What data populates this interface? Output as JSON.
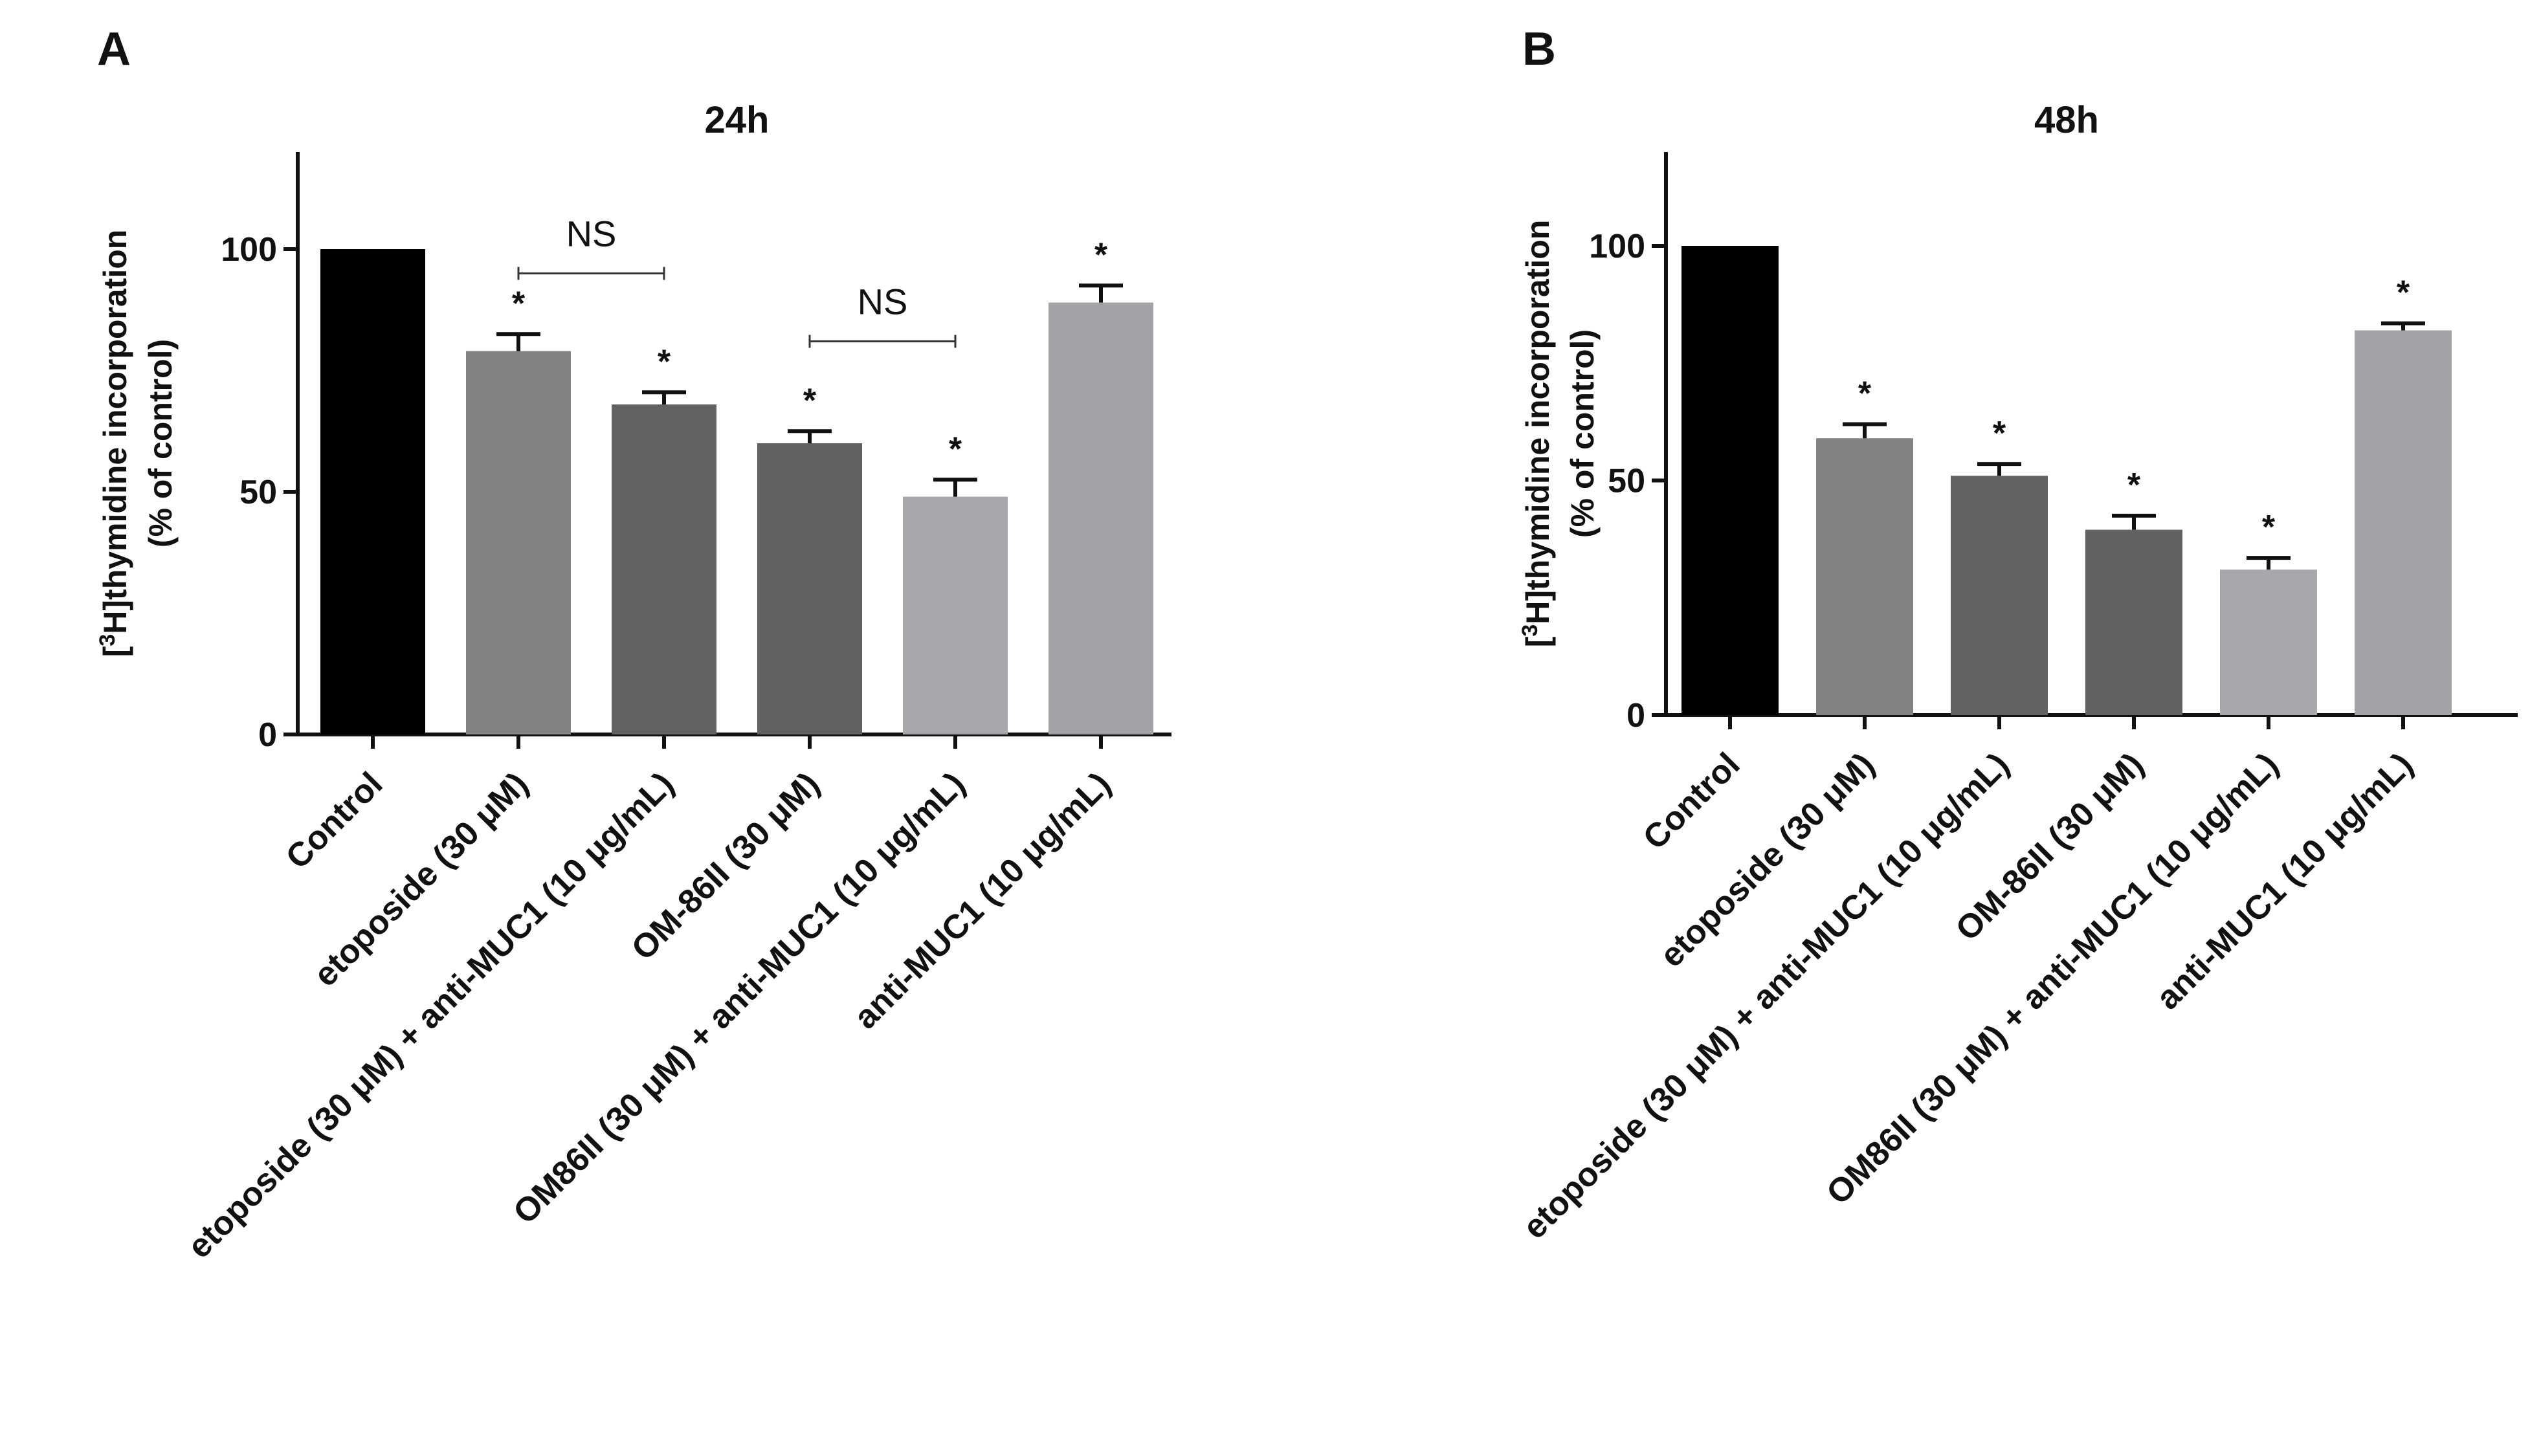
{
  "chart_data": [
    {
      "panel": "A",
      "type": "bar",
      "title": "24h",
      "ylabel_line1": "[3H]thymidine incorporation",
      "ylabel_sup": "3",
      "ylabel_rest": "H]thymidine incorporation",
      "ylabel_line2": "(% of control)",
      "ylim": [
        0,
        120
      ],
      "yticks": [
        0,
        50,
        100
      ],
      "categories": [
        "Control",
        "etoposide (30  μM)",
        "etoposide (30  μM) + anti-MUC1 (10  μg/mL)",
        "OM-86II (30  μM)",
        "OM86II (30  μM) + anti-MUC1 (10  μg/mL)",
        "anti-MUC1 (10  μg/mL)"
      ],
      "values": [
        100,
        79,
        68,
        60,
        49,
        89
      ],
      "errors": [
        0,
        3.5,
        2.5,
        2.5,
        3.5,
        3.5
      ],
      "colors": [
        "#000000",
        "#828282",
        "#626262",
        "#616161",
        "#a8a8aa",
        "#a3a3a6"
      ],
      "significance": [
        "",
        "*",
        "*",
        "*",
        "*",
        "*"
      ],
      "brackets": [
        {
          "from": 1,
          "to": 2,
          "label": "NS",
          "y": 95
        },
        {
          "from": 3,
          "to": 4,
          "label": "NS",
          "y": 81
        }
      ]
    },
    {
      "panel": "B",
      "type": "bar",
      "title": "48h",
      "ylabel_line1": "[3H]thymidine incorporation",
      "ylabel_sup": "3",
      "ylabel_rest": "H]thymidine incorporation",
      "ylabel_line2": "(% of control)",
      "ylim": [
        0,
        120
      ],
      "yticks": [
        0,
        50,
        100
      ],
      "categories": [
        "Control",
        "etoposide (30  μM)",
        "etoposide (30  μM) + anti-MUC1 (10  μg/mL)",
        "OM-86II (30  μM)",
        "OM86II (30  μM) + anti-MUC1 (10  μg/mL)",
        "anti-MUC1 (10  μg/mL)"
      ],
      "values": [
        100,
        59,
        51,
        39.5,
        31,
        82
      ],
      "errors": [
        0,
        3,
        2.5,
        3,
        2.5,
        1.5
      ],
      "colors": [
        "#000000",
        "#828282",
        "#626262",
        "#616161",
        "#a8a8aa",
        "#a3a3a6"
      ],
      "significance": [
        "",
        "*",
        "*",
        "*",
        "*",
        "*"
      ],
      "brackets": []
    }
  ]
}
